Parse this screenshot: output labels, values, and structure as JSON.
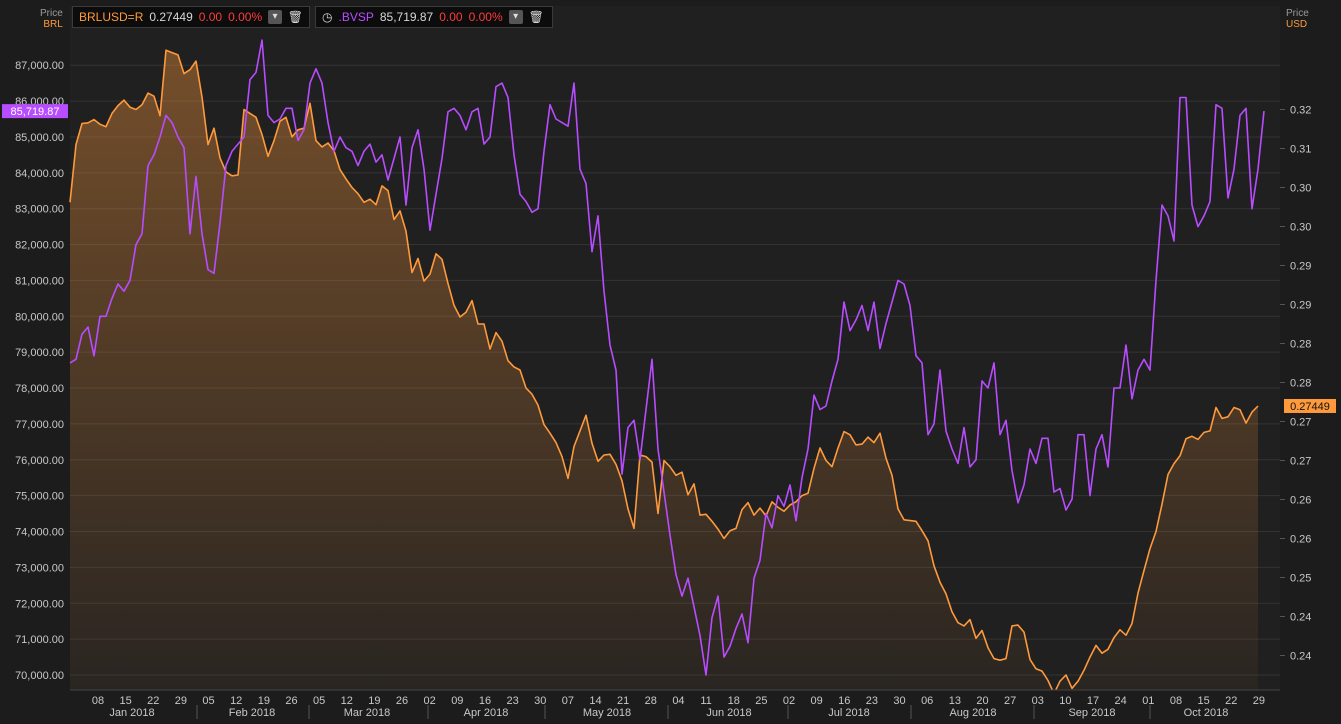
{
  "legend": {
    "brl": {
      "symbol": "BRLUSD=R",
      "value": "0.27449",
      "change": "0.00",
      "change_pct": "0.00%"
    },
    "bvsp": {
      "symbol": ".BVSP",
      "value": "85,719.87",
      "change": "0.00",
      "change_pct": "0.00%"
    }
  },
  "left_axis": {
    "title": "Price",
    "unit": "BRL"
  },
  "right_axis": {
    "title": "Price",
    "unit": "USD"
  },
  "colors": {
    "background": "#1c1c1c",
    "plot_background": "#202020",
    "grid": "#333333",
    "brl_line": "#ff9a3c",
    "bvsp_line": "#b84cff",
    "tick_text": "#c8c8c8"
  },
  "chart_data": {
    "type": "line",
    "ylim_left": [
      69800,
      88500
    ],
    "left_ticks": [
      "70,000.00",
      "71,000.00",
      "72,000.00",
      "73,000.00",
      "74,000.00",
      "75,000.00",
      "76,000.00",
      "77,000.00",
      "78,000.00",
      "79,000.00",
      "80,000.00",
      "81,000.00",
      "82,000.00",
      "83,000.00",
      "84,000.00",
      "85,000.00",
      "86,000.00",
      "87,000.00"
    ],
    "right_ticks": [
      "0.24",
      "0.24",
      "0.25",
      "0.26",
      "0.26",
      "0.27",
      "0.27",
      "0.28",
      "0.28",
      "0.29",
      "0.29",
      "0.30",
      "0.30",
      "0.31",
      "0.32"
    ],
    "last_price_left": "85,719.87",
    "last_price_right": "0.27449",
    "x_day_labels": [
      "08",
      "15",
      "22",
      "29",
      "05",
      "12",
      "19",
      "26",
      "05",
      "12",
      "19",
      "26",
      "02",
      "09",
      "16",
      "23",
      "30",
      "07",
      "14",
      "21",
      "28",
      "04",
      "11",
      "18",
      "25",
      "02",
      "09",
      "16",
      "23",
      "30",
      "06",
      "13",
      "20",
      "27",
      "03",
      "10",
      "17",
      "24",
      "01",
      "08",
      "15",
      "22",
      "29"
    ],
    "x_month_labels": [
      "Jan 2018",
      "Feb 2018",
      "Mar 2018",
      "Apr 2018",
      "May 2018",
      "Jun 2018",
      "Jul 2018",
      "Aug 2018",
      "Sep 2018",
      "Oct 2018"
    ],
    "series": [
      {
        "name": ".BVSP",
        "values": [
          78700,
          78800,
          79500,
          79700,
          78900,
          80000,
          80000,
          80500,
          80900,
          80700,
          81000,
          82000,
          82300,
          84200,
          84500,
          85000,
          85600,
          85400,
          85000,
          84700,
          82300,
          83900,
          82300,
          81300,
          81200,
          82600,
          84200,
          84600,
          84800,
          85000,
          86600,
          86800,
          87700,
          85600,
          85400,
          85500,
          85800,
          85800,
          84900,
          85200,
          86500,
          86900,
          86500,
          85400,
          84600,
          85000,
          84700,
          84600,
          84200,
          84600,
          84800,
          84300,
          84500,
          83800,
          84400,
          85000,
          83100,
          84700,
          85200,
          84100,
          82400,
          83400,
          84400,
          85700,
          85800,
          85600,
          85200,
          85700,
          85800,
          84800,
          85000,
          86400,
          86500,
          86100,
          84500,
          83400,
          83200,
          82900,
          83000,
          84600,
          85900,
          85500,
          85400,
          85300,
          86500,
          84100,
          83700,
          81800,
          82800,
          80700,
          79200,
          78500,
          75600,
          76900,
          77100,
          76000,
          77400,
          78800,
          76300,
          75100,
          73900,
          72800,
          72200,
          72700,
          71900,
          71100,
          70000,
          71600,
          72200,
          70500,
          70800,
          71300,
          71700,
          70900,
          72700,
          73200,
          74500,
          74100,
          75000,
          74700,
          75300,
          74300,
          75500,
          76300,
          77800,
          77400,
          77500,
          78200,
          78800,
          80400,
          79600,
          79900,
          80300,
          79600,
          80400,
          79100,
          79800,
          80400,
          81000,
          80900,
          80300,
          78900,
          78700,
          76700,
          77000,
          78500,
          76800,
          76300,
          75900,
          76900,
          75800,
          76000,
          78200,
          78000,
          78700,
          76700,
          77100,
          75700,
          74800,
          75300,
          76300,
          75900,
          76600,
          76600,
          75100,
          75200,
          74600,
          74900,
          76700,
          76700,
          75000,
          76300,
          76700,
          75800,
          78000,
          78000,
          79200,
          77700,
          78500,
          78800,
          78500,
          81000,
          83100,
          82800,
          82100,
          86100,
          86100,
          83100,
          82500,
          82800,
          83200,
          85900,
          85800,
          83300,
          84100,
          85600,
          85800,
          83000,
          84100,
          85720
        ]
      },
      {
        "name": "BRLUSD=R",
        "values": [
          0.3006,
          0.308,
          0.3107,
          0.3108,
          0.3112,
          0.3106,
          0.3103,
          0.312,
          0.313,
          0.3137,
          0.3128,
          0.3125,
          0.3131,
          0.3146,
          0.3142,
          0.3117,
          0.3201,
          0.3198,
          0.3195,
          0.3171,
          0.3176,
          0.3187,
          0.3141,
          0.308,
          0.3101,
          0.3063,
          0.3045,
          0.304,
          0.3041,
          0.3125,
          0.312,
          0.3115,
          0.3093,
          0.3065,
          0.3085,
          0.311,
          0.3115,
          0.309,
          0.3099,
          0.3101,
          0.3133,
          0.3085,
          0.3077,
          0.3082,
          0.3072,
          0.3048,
          0.3036,
          0.3025,
          0.3017,
          0.3006,
          0.301,
          0.3003,
          0.3027,
          0.3021,
          0.2984,
          0.2995,
          0.2969,
          0.2916,
          0.2934,
          0.2905,
          0.2914,
          0.294,
          0.2933,
          0.2902,
          0.2874,
          0.2859,
          0.2865,
          0.288,
          0.285,
          0.285,
          0.2818,
          0.2839,
          0.2828,
          0.2803,
          0.2795,
          0.2791,
          0.2768,
          0.276,
          0.2746,
          0.2721,
          0.271,
          0.2698,
          0.268,
          0.2652,
          0.2693,
          0.2713,
          0.2733,
          0.2697,
          0.2674,
          0.2682,
          0.2683,
          0.267,
          0.2649,
          0.2613,
          0.2588,
          0.2682,
          0.268,
          0.2673,
          0.2607,
          0.2675,
          0.2667,
          0.2656,
          0.266,
          0.2631,
          0.2645,
          0.2605,
          0.2606,
          0.2597,
          0.2587,
          0.2575,
          0.2585,
          0.2588,
          0.2612,
          0.2621,
          0.2605,
          0.2614,
          0.2604,
          0.2622,
          0.2615,
          0.261,
          0.2618,
          0.2622,
          0.263,
          0.2633,
          0.2665,
          0.2691,
          0.2675,
          0.2667,
          0.2691,
          0.2712,
          0.2708,
          0.2695,
          0.2696,
          0.2705,
          0.2698,
          0.271,
          0.2678,
          0.2656,
          0.2613,
          0.2599,
          0.2598,
          0.2597,
          0.2585,
          0.2572,
          0.254,
          0.2519,
          0.2504,
          0.2481,
          0.2467,
          0.2463,
          0.2471,
          0.2447,
          0.2457,
          0.2435,
          0.2421,
          0.2419,
          0.2421,
          0.2463,
          0.2464,
          0.2455,
          0.242,
          0.2408,
          0.2405,
          0.2393,
          0.2376,
          0.2392,
          0.24,
          0.2383,
          0.2392,
          0.2406,
          0.2423,
          0.2438,
          0.2428,
          0.2433,
          0.2448,
          0.2458,
          0.2451,
          0.2466,
          0.2505,
          0.2534,
          0.2562,
          0.2584,
          0.2619,
          0.2657,
          0.2671,
          0.2681,
          0.2703,
          0.2706,
          0.2702,
          0.2711,
          0.2713,
          0.2743,
          0.2729,
          0.2731,
          0.2743,
          0.274,
          0.2723,
          0.2737,
          0.27449
        ]
      }
    ]
  }
}
